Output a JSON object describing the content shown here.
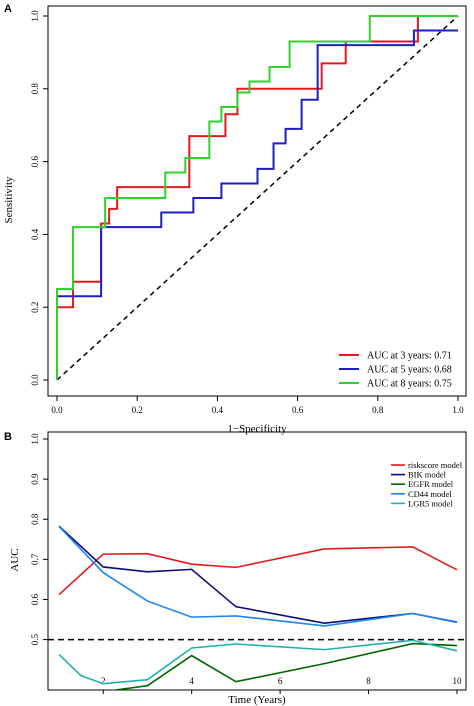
{
  "chart_data": [
    {
      "panel_label": "A",
      "type": "line",
      "subtype": "step",
      "xlabel": "1−Specificity",
      "ylabel": "Sensitivity",
      "xlim": [
        0,
        1
      ],
      "ylim": [
        0,
        1
      ],
      "xticks": [
        "0.0",
        "0.2",
        "0.4",
        "0.6",
        "0.8",
        "1.0"
      ],
      "yticks": [
        "0.0",
        "0.2",
        "0.4",
        "0.6",
        "0.8",
        "1.0"
      ],
      "grid": false,
      "legend_position": "bottom-right",
      "reference_line": {
        "from": [
          0,
          0
        ],
        "to": [
          1,
          1
        ],
        "style": "dashed",
        "color": "#000000"
      },
      "series": [
        {
          "name": "AUC at 3 years: 0.71",
          "color": "#e31a1c",
          "x": [
            0,
            0,
            0.04,
            0.04,
            0.11,
            0.11,
            0.13,
            0.13,
            0.15,
            0.15,
            0.33,
            0.33,
            0.42,
            0.42,
            0.45,
            0.45,
            0.66,
            0.66,
            0.72,
            0.72,
            0.9,
            0.9,
            1.0
          ],
          "y": [
            0,
            0.2,
            0.2,
            0.27,
            0.27,
            0.43,
            0.43,
            0.47,
            0.47,
            0.53,
            0.53,
            0.67,
            0.67,
            0.73,
            0.73,
            0.8,
            0.8,
            0.87,
            0.87,
            0.93,
            0.93,
            1.0,
            1.0
          ]
        },
        {
          "name": "AUC at 5 years: 0.68",
          "color": "#1f1fbf",
          "x": [
            0,
            0,
            0.11,
            0.11,
            0.26,
            0.26,
            0.34,
            0.34,
            0.41,
            0.41,
            0.5,
            0.5,
            0.54,
            0.54,
            0.57,
            0.57,
            0.61,
            0.61,
            0.65,
            0.65,
            0.89,
            0.89,
            1.0
          ],
          "y": [
            0,
            0.23,
            0.23,
            0.42,
            0.42,
            0.46,
            0.46,
            0.5,
            0.5,
            0.54,
            0.54,
            0.58,
            0.58,
            0.65,
            0.65,
            0.69,
            0.69,
            0.77,
            0.77,
            0.92,
            0.92,
            0.96,
            0.96
          ]
        },
        {
          "name": "AUC at 8 years: 0.75",
          "color": "#2ed12e",
          "x": [
            0,
            0,
            0.04,
            0.04,
            0.12,
            0.12,
            0.27,
            0.27,
            0.32,
            0.32,
            0.38,
            0.38,
            0.41,
            0.41,
            0.45,
            0.45,
            0.48,
            0.48,
            0.53,
            0.53,
            0.58,
            0.58,
            0.78,
            0.78,
            1.0
          ],
          "y": [
            0,
            0.25,
            0.25,
            0.42,
            0.42,
            0.5,
            0.5,
            0.57,
            0.57,
            0.61,
            0.61,
            0.71,
            0.71,
            0.75,
            0.75,
            0.79,
            0.79,
            0.82,
            0.82,
            0.86,
            0.86,
            0.93,
            0.93,
            1.0,
            1.0
          ]
        }
      ]
    },
    {
      "panel_label": "B",
      "type": "line",
      "xlabel": "Time (Years)",
      "ylabel": "AUC",
      "xlim": [
        1,
        10
      ],
      "ylim": [
        0.4,
        1.0
      ],
      "xticks": [
        "2",
        "4",
        "6",
        "8",
        "10"
      ],
      "yticks": [
        "0.5",
        "0.6",
        "0.7",
        "0.8",
        "0.9",
        "1.0"
      ],
      "grid": false,
      "legend_position": "top-right",
      "reference_line": {
        "y": 0.5,
        "style": "dashed",
        "color": "#000000"
      },
      "series": [
        {
          "name": "riskscore model",
          "color": "#e31a1c",
          "x": [
            1,
            2,
            3,
            4,
            5,
            7,
            9,
            10
          ],
          "y": [
            0.612,
            0.713,
            0.714,
            0.688,
            0.68,
            0.726,
            0.731,
            0.674
          ]
        },
        {
          "name": "BIK model",
          "color": "#0b0b80",
          "x": [
            1,
            2,
            3,
            4,
            5,
            7,
            9,
            10
          ],
          "y": [
            0.783,
            0.681,
            0.669,
            0.675,
            0.582,
            0.541,
            0.565,
            0.543
          ]
        },
        {
          "name": "EGFR model",
          "color": "#006400",
          "x": [
            1,
            2,
            3,
            4,
            5,
            7,
            9,
            10
          ],
          "y": [
            0.355,
            0.37,
            0.385,
            0.46,
            0.395,
            0.44,
            0.49,
            0.485
          ]
        },
        {
          "name": "CD44 model",
          "color": "#1c86ee",
          "x": [
            1,
            2,
            3,
            4,
            5,
            7,
            9,
            10
          ],
          "y": [
            0.782,
            0.667,
            0.596,
            0.556,
            0.559,
            0.534,
            0.565,
            0.544
          ]
        },
        {
          "name": "LGR5 model",
          "color": "#20b2aa",
          "x": [
            1,
            1.5,
            2,
            3,
            4,
            5,
            7,
            9,
            10
          ],
          "y": [
            0.463,
            0.41,
            0.39,
            0.4,
            0.479,
            0.489,
            0.475,
            0.498,
            0.472
          ]
        }
      ]
    }
  ]
}
